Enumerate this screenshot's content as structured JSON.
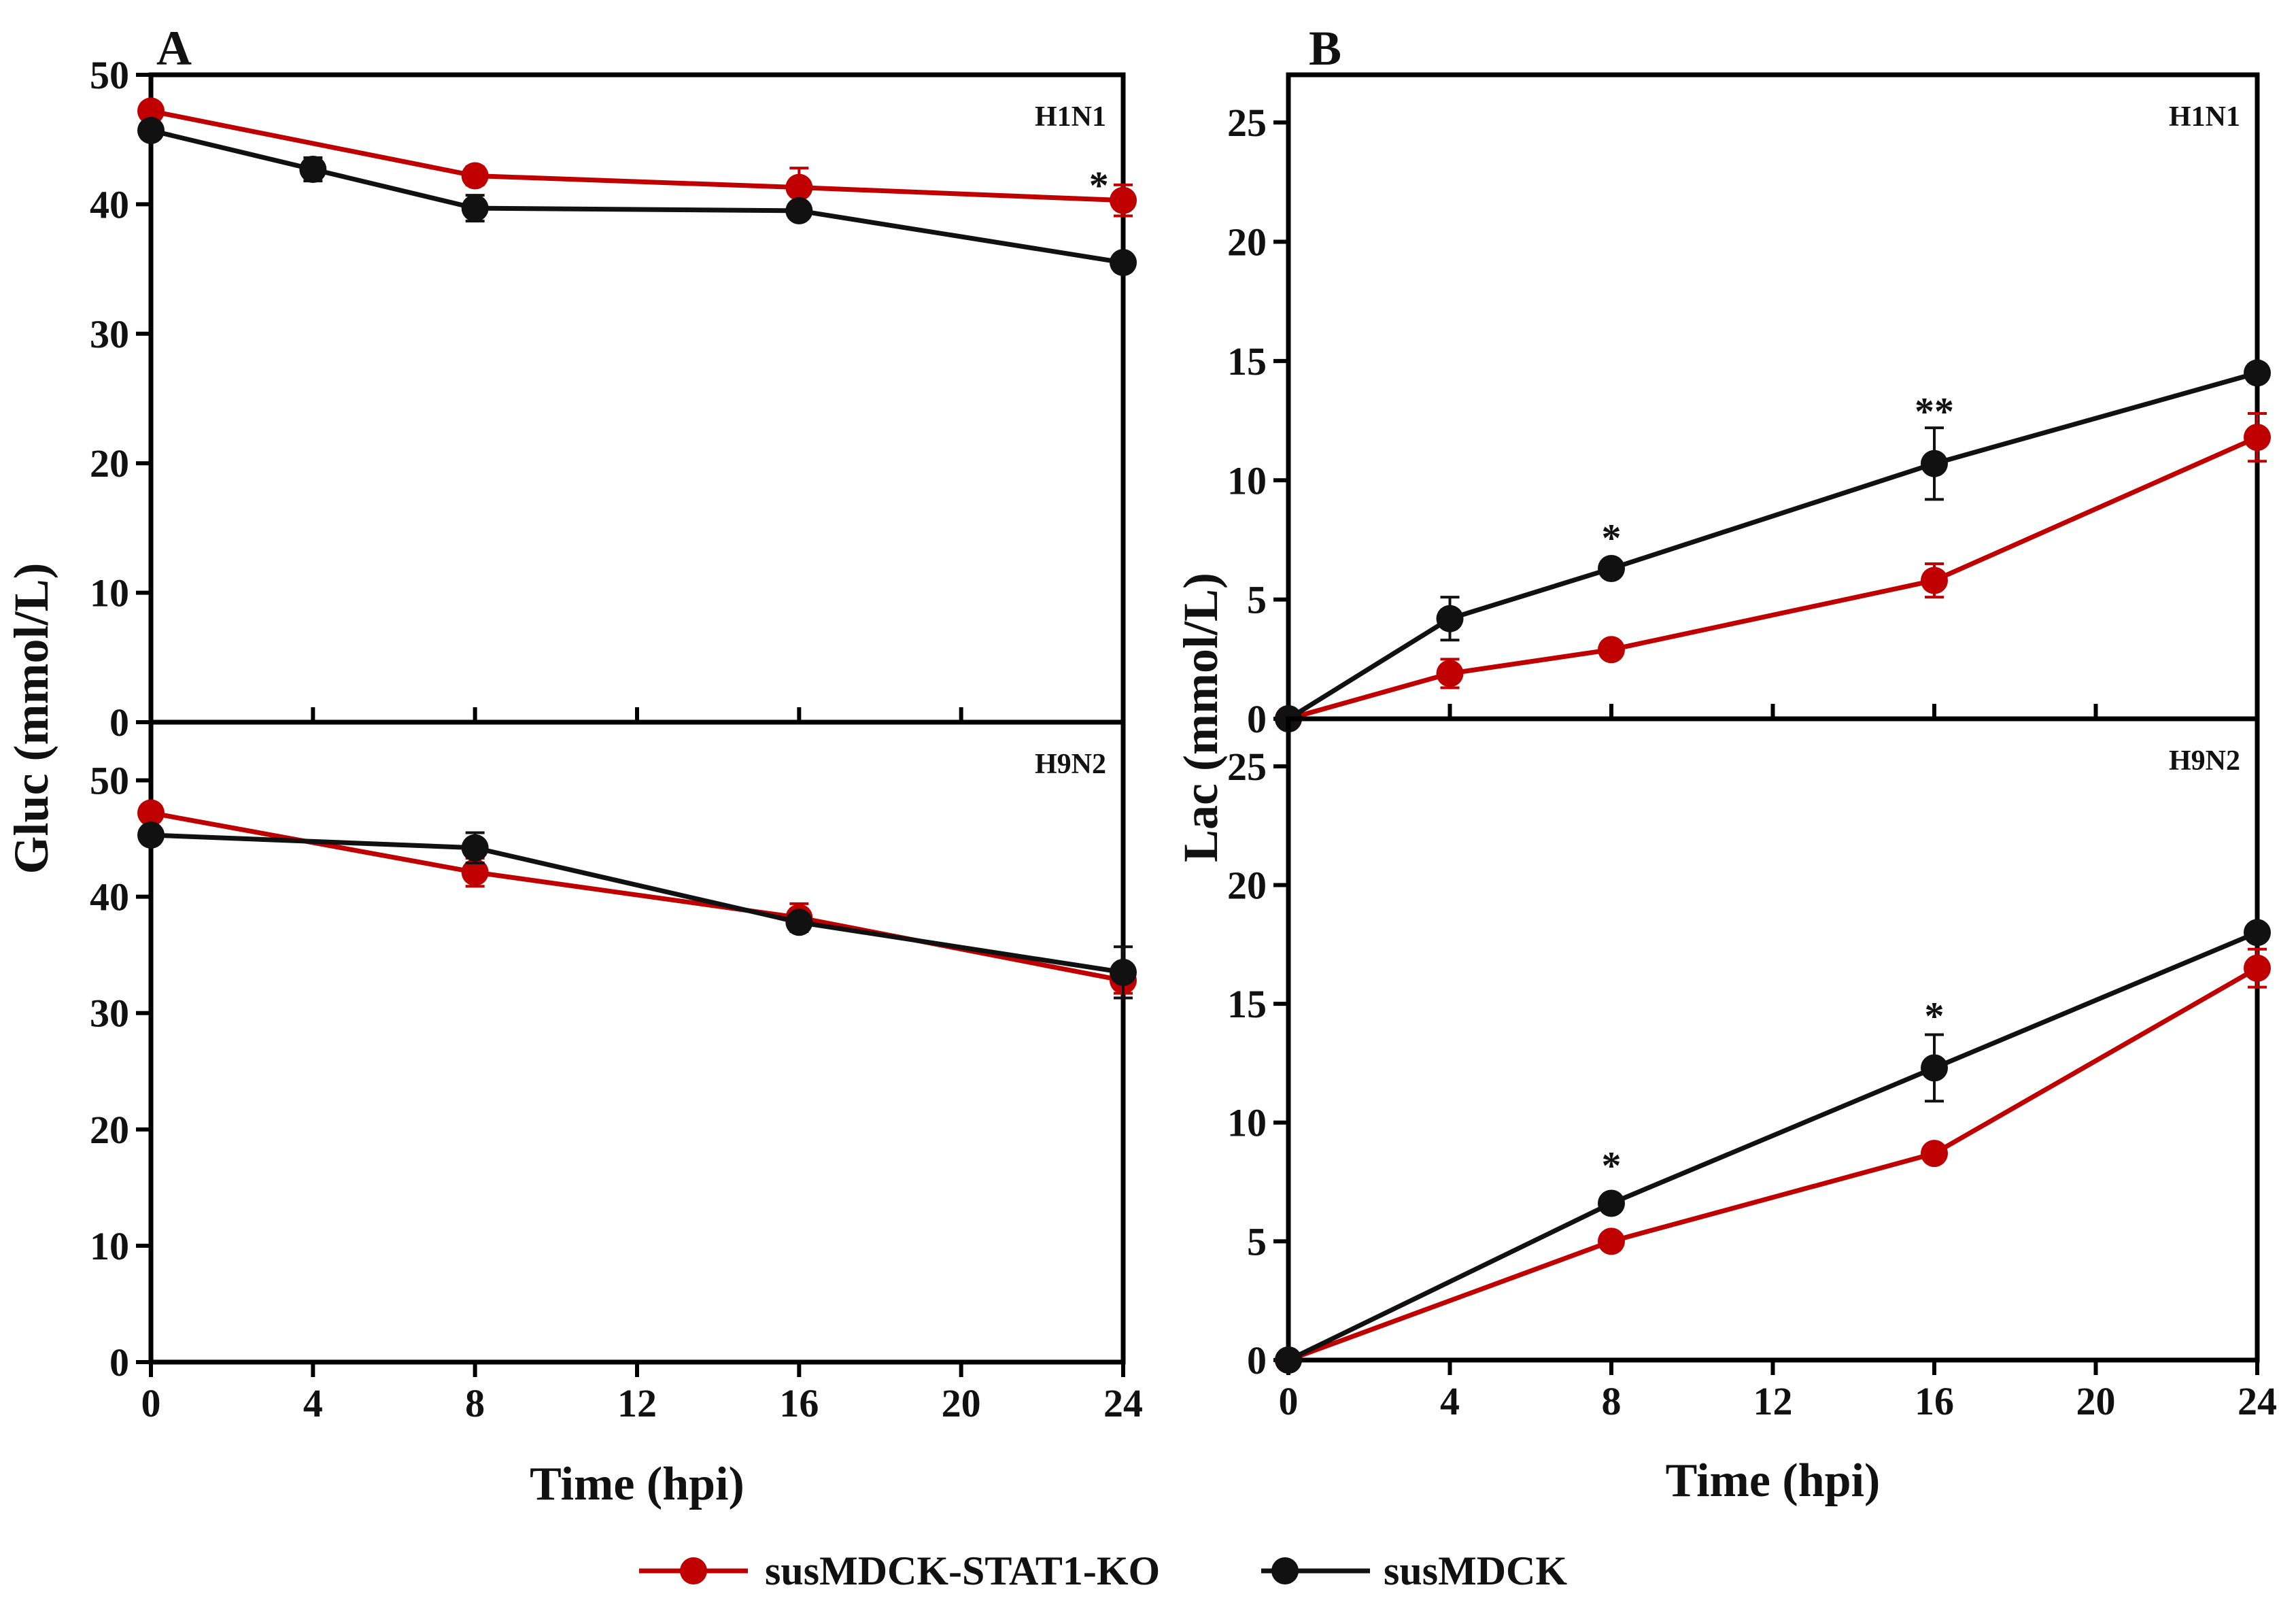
{
  "colors": {
    "ko": "#c00000",
    "wt": "#111111",
    "axis": "#000000"
  },
  "legend": {
    "items": [
      {
        "key": "ko",
        "label": "susMDCK-STAT1-KO"
      },
      {
        "key": "wt",
        "label": "susMDCK"
      }
    ]
  },
  "chart_data": [
    {
      "type": "line",
      "panel_letter": "A",
      "ylabel": "Gluc (mmol/L)",
      "xlabel": "Time (hpi)",
      "xlim": [
        0,
        24
      ],
      "xticks": [
        "0",
        "4",
        "8",
        "12",
        "16",
        "20",
        "24"
      ],
      "subplots": [
        {
          "title": "H1N1",
          "ylim": [
            0,
            50
          ],
          "yticks": [
            "0",
            "10",
            "20",
            "30",
            "40",
            "50"
          ],
          "series": [
            {
              "key": "ko",
              "name": "susMDCK-STAT1-KO",
              "x": [
                0,
                8,
                16,
                24
              ],
              "y": [
                47.2,
                42.2,
                41.3,
                40.3
              ],
              "err": [
                0.6,
                0.7,
                1.5,
                1.2
              ]
            },
            {
              "key": "wt",
              "name": "susMDCK",
              "x": [
                0,
                4,
                8,
                16,
                24
              ],
              "y": [
                45.7,
                42.7,
                39.7,
                39.5,
                35.5
              ],
              "err": [
                0.5,
                0.9,
                1.0,
                0.5,
                0.6
              ]
            }
          ],
          "annotations": [
            {
              "x": 23.4,
              "y": 41.5,
              "text": "*"
            }
          ]
        },
        {
          "title": "H9N2",
          "ylim": [
            0,
            55
          ],
          "yticks": [
            "0",
            "10",
            "20",
            "30",
            "40",
            "50"
          ],
          "series": [
            {
              "key": "ko",
              "name": "susMDCK-STAT1-KO",
              "x": [
                0,
                8,
                16,
                24
              ],
              "y": [
                47.2,
                42.1,
                38.2,
                32.8
              ],
              "err": [
                0.5,
                1.2,
                1.2,
                1.1
              ]
            },
            {
              "key": "wt",
              "name": "susMDCK",
              "x": [
                0,
                8,
                16,
                24
              ],
              "y": [
                45.3,
                44.2,
                37.8,
                33.5
              ],
              "err": [
                0.4,
                1.3,
                0.6,
                2.2
              ]
            }
          ],
          "annotations": []
        }
      ]
    },
    {
      "type": "line",
      "panel_letter": "B",
      "ylabel": "Lac (mmol/L)",
      "xlabel": "Time (hpi)",
      "xlim": [
        0,
        24
      ],
      "xticks": [
        "0",
        "4",
        "8",
        "12",
        "16",
        "20",
        "24"
      ],
      "subplots": [
        {
          "title": "H1N1",
          "ylim": [
            0,
            27
          ],
          "yticks": [
            "0",
            "5",
            "10",
            "15",
            "20",
            "25"
          ],
          "series": [
            {
              "key": "ko",
              "name": "susMDCK-STAT1-KO",
              "x": [
                0,
                4,
                8,
                16,
                24
              ],
              "y": [
                0,
                1.9,
                2.9,
                5.8,
                11.8
              ],
              "err": [
                0.1,
                0.6,
                0.2,
                0.7,
                1.0
              ]
            },
            {
              "key": "wt",
              "name": "susMDCK",
              "x": [
                0,
                4,
                8,
                16,
                24
              ],
              "y": [
                0,
                4.2,
                6.3,
                10.7,
                14.5
              ],
              "err": [
                0.1,
                0.9,
                0.2,
                1.5,
                0.2
              ]
            }
          ],
          "annotations": [
            {
              "x": 8,
              "y": 7.6,
              "text": "*"
            },
            {
              "x": 16,
              "y": 12.9,
              "text": "**"
            }
          ]
        },
        {
          "title": "H9N2",
          "ylim": [
            0,
            27
          ],
          "yticks": [
            "0",
            "5",
            "10",
            "15",
            "20",
            "25"
          ],
          "series": [
            {
              "key": "ko",
              "name": "susMDCK-STAT1-KO",
              "x": [
                0,
                8,
                16,
                24
              ],
              "y": [
                0,
                5.0,
                8.7,
                16.5
              ],
              "err": [
                0.1,
                0.2,
                0.3,
                0.8
              ]
            },
            {
              "key": "wt",
              "name": "susMDCK",
              "x": [
                0,
                8,
                16,
                24
              ],
              "y": [
                0,
                6.6,
                12.3,
                18.0
              ],
              "err": [
                0.1,
                0.3,
                1.4,
                0.2
              ]
            }
          ],
          "annotations": [
            {
              "x": 8,
              "y": 8.2,
              "text": "*"
            },
            {
              "x": 16,
              "y": 14.5,
              "text": "*"
            }
          ]
        }
      ]
    }
  ]
}
